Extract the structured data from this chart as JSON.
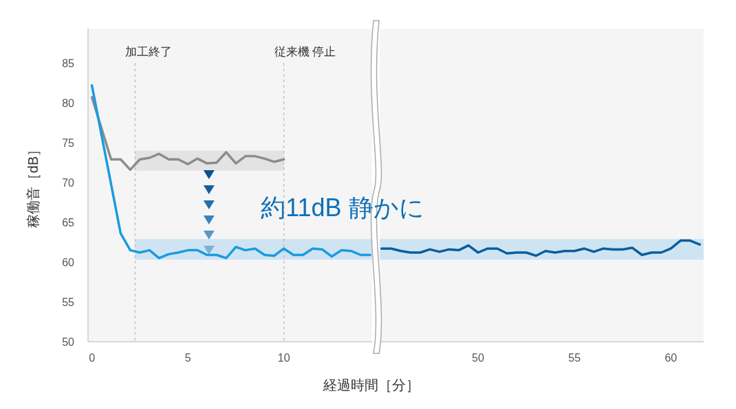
{
  "chart_data": [
    {
      "type": "line",
      "ylabel": "稼働音［dB］",
      "xlabel": "経過時間［分］",
      "xlim": [
        -0.2,
        14.6
      ],
      "xticks": [
        0,
        5,
        10
      ],
      "ylim": [
        50,
        89.3
      ],
      "yticks": [
        50,
        55,
        60,
        65,
        70,
        75,
        80,
        85
      ],
      "grid": false,
      "marker": "none",
      "line_style": "solid",
      "series": [
        {
          "color": "#8c8c8c",
          "x": [
            0,
            1,
            1.5,
            2,
            2.5,
            3,
            3.5,
            4,
            4.5,
            5,
            5.5,
            6,
            6.5,
            7,
            7.5,
            8,
            8.5,
            9,
            9.5,
            10
          ],
          "values": [
            80.7,
            72.9,
            72.9,
            71.6,
            72.9,
            73.1,
            73.6,
            72.9,
            72.9,
            72.3,
            73.0,
            72.4,
            72.5,
            73.8,
            72.4,
            73.3,
            73.3,
            73.0,
            72.6,
            72.9
          ]
        },
        {
          "color": "#1a9be0",
          "x": [
            0,
            1.5,
            2,
            2.5,
            3,
            3.5,
            4,
            4.5,
            5,
            5.5,
            6,
            6.5,
            7,
            7.5,
            8,
            8.5,
            9,
            9.5,
            10,
            10.5,
            11,
            11.5,
            12,
            12.5,
            13,
            13.5,
            14,
            14.5
          ],
          "values": [
            82.2,
            63.6,
            61.5,
            61.2,
            61.5,
            60.5,
            61.0,
            61.2,
            61.5,
            61.5,
            60.9,
            60.9,
            60.5,
            61.9,
            61.5,
            61.7,
            60.9,
            60.8,
            61.7,
            60.9,
            60.9,
            61.7,
            61.6,
            60.7,
            61.5,
            61.4,
            60.9,
            60.9
          ]
        }
      ],
      "ref_lines": [
        {
          "axis": "x",
          "value": 2.25,
          "label": "加工終了",
          "color": "#bbbbbb",
          "line_style": "dashed"
        },
        {
          "axis": "x",
          "value": 10,
          "label": "従来機 停止",
          "color": "#bbbbbb",
          "line_style": "dashed"
        }
      ],
      "bands": [
        {
          "axis": "y",
          "from": 71.5,
          "to": 74,
          "color": "#e3e3e3"
        },
        {
          "axis": "y",
          "from": 60.3,
          "to": 62.9,
          "color": "#cfe4f2"
        }
      ],
      "annotations": [
        "約11dB 静かに"
      ]
    },
    {
      "type": "line",
      "xlim": [
        44.9,
        61.7
      ],
      "xticks": [
        50,
        55,
        60
      ],
      "ylim": [
        50,
        89.3
      ],
      "tick_labels": "x",
      "grid": false,
      "marker": "none",
      "line_style": "solid",
      "series": [
        {
          "color": "#0b5d9e",
          "x": [
            45,
            45.5,
            46,
            46.5,
            47,
            47.5,
            48,
            48.5,
            49,
            49.5,
            50,
            50.5,
            51,
            51.5,
            52,
            52.5,
            53,
            53.5,
            54,
            54.5,
            55,
            55.5,
            56,
            56.5,
            57,
            57.5,
            58,
            58.5,
            59,
            59.5,
            60,
            60.5,
            61,
            61.5
          ],
          "values": [
            61.7,
            61.7,
            61.4,
            61.2,
            61.2,
            61.6,
            61.3,
            61.6,
            61.5,
            62.1,
            61.2,
            61.7,
            61.7,
            61.1,
            61.2,
            61.2,
            60.8,
            61.4,
            61.2,
            61.4,
            61.4,
            61.7,
            61.3,
            61.7,
            61.6,
            61.6,
            61.8,
            60.9,
            61.2,
            61.2,
            61.7,
            62.7,
            62.7,
            62.2
          ]
        }
      ],
      "bands": [
        {
          "axis": "y",
          "from": 60.3,
          "to": 62.9,
          "color": "#cfe4f2"
        }
      ]
    }
  ]
}
